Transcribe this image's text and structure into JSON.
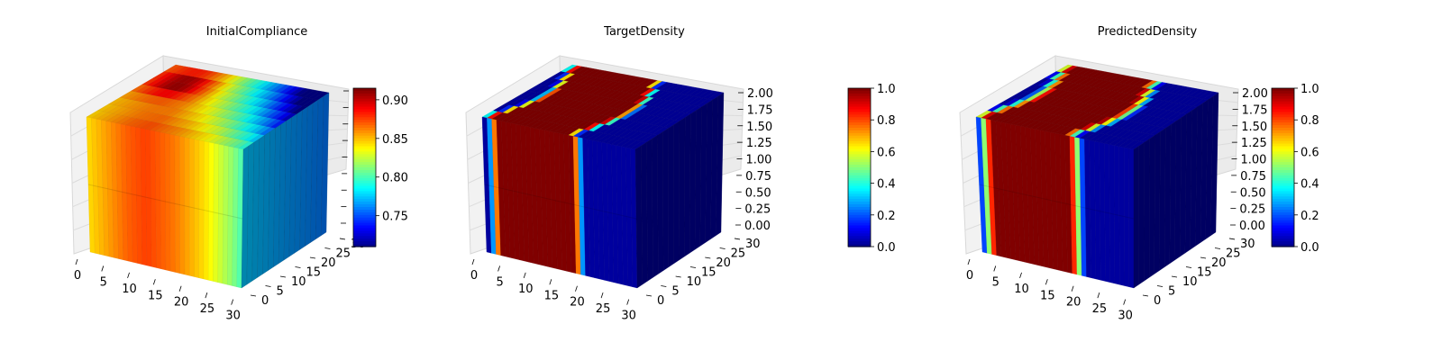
{
  "chart_data": [
    {
      "type": "3d-voxel",
      "title": "InitialCompliance",
      "x_ticks": [
        "0",
        "5",
        "10",
        "15",
        "20",
        "25",
        "30"
      ],
      "y_ticks": [
        "0",
        "5",
        "10",
        "15",
        "20",
        "25",
        "30"
      ],
      "z_ticks": [],
      "colorbar": {
        "min": 0.71,
        "max": 0.915,
        "ticks": [
          "0.75",
          "0.80",
          "0.85",
          "0.90"
        ],
        "tick_values": [
          0.75,
          0.8,
          0.85,
          0.9
        ]
      },
      "colormap": "jet",
      "field": {
        "front_face_profile": [
          {
            "x": 0,
            "value": 0.845
          },
          {
            "x": 8,
            "value": 0.87
          },
          {
            "x": 12,
            "value": 0.877
          },
          {
            "x": 18,
            "value": 0.865
          },
          {
            "x": 24,
            "value": 0.845
          },
          {
            "x": 30,
            "value": 0.815
          },
          {
            "x": 32,
            "value": 0.8
          }
        ],
        "right_face_value": 0.775,
        "top_face_note": "peak near front-left corner (~0.91), decreasing to ~0.72 at the back-right corner"
      }
    },
    {
      "type": "3d-voxel",
      "title": "TargetDensity",
      "x_ticks": [
        "0",
        "5",
        "10",
        "15",
        "20",
        "25",
        "30"
      ],
      "y_ticks": [
        "0",
        "5",
        "10",
        "15",
        "20",
        "25",
        "30"
      ],
      "z_ticks": [
        "0.00",
        "0.25",
        "0.50",
        "0.75",
        "1.00",
        "1.25",
        "1.50",
        "1.75",
        "2.00"
      ],
      "colorbar": {
        "min": 0.0,
        "max": 1.0,
        "ticks": [
          "0.0",
          "0.2",
          "0.4",
          "0.6",
          "0.8",
          "1.0"
        ],
        "tick_values": [
          0.0,
          0.2,
          0.4,
          0.6,
          0.8,
          1.0
        ]
      },
      "colormap": "jet",
      "field": {
        "band_start_x": 3,
        "band_end_x": 19,
        "edge_width": 2,
        "right_face_value": 0.05
      }
    },
    {
      "type": "3d-voxel",
      "title": "PredictedDensity",
      "x_ticks": [
        "0",
        "5",
        "10",
        "15",
        "20",
        "25",
        "30"
      ],
      "y_ticks": [
        "0",
        "5",
        "10",
        "15",
        "20",
        "25",
        "30"
      ],
      "z_ticks": [
        "0.00",
        "0.25",
        "0.50",
        "0.75",
        "1.00",
        "1.25",
        "1.50",
        "1.75",
        "2.00"
      ],
      "colorbar": {
        "min": 0.0,
        "max": 1.0,
        "ticks": [
          "0.0",
          "0.2",
          "0.4",
          "0.6",
          "0.8",
          "1.0"
        ],
        "tick_values": [
          0.0,
          0.2,
          0.4,
          0.6,
          0.8,
          1.0
        ]
      },
      "colormap": "jet",
      "field": {
        "band_start_x": 3,
        "band_end_x": 19,
        "edge_width": 3,
        "right_face_value": 0.05
      }
    }
  ]
}
